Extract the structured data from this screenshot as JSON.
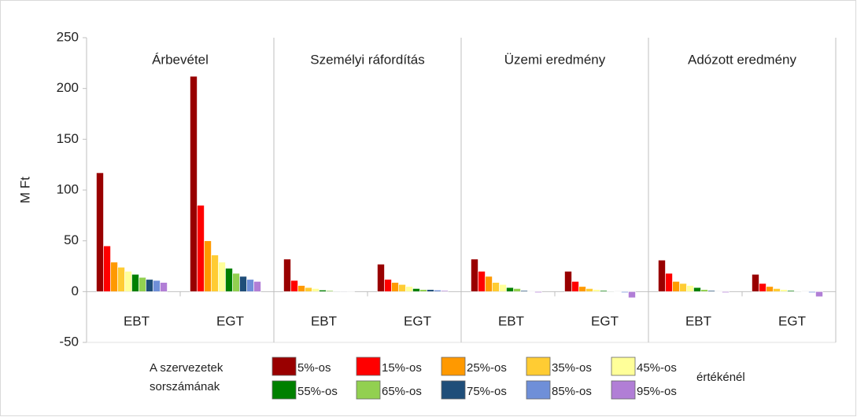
{
  "chart_data": {
    "type": "bar",
    "ylabel": "M Ft",
    "ylim": [
      -50,
      250
    ],
    "yticks": [
      -50,
      0,
      50,
      100,
      150,
      200,
      250
    ],
    "panel_titles": [
      "Árbevétel",
      "Személyi ráfordítás",
      "Üzemi eredmény",
      "Adózott eredmény"
    ],
    "categories": [
      "EBT",
      "EGT",
      "EBT",
      "EGT",
      "EBT",
      "EGT",
      "EBT",
      "EGT"
    ],
    "legend_prefix": [
      "A szervezetek",
      "sorszámának"
    ],
    "legend_suffix": "értékénél",
    "series": [
      {
        "name": "5%-os",
        "color": "#990000",
        "values": [
          117,
          212,
          32,
          27,
          32,
          20,
          31,
          17
        ]
      },
      {
        "name": "15%-os",
        "color": "#ff0000",
        "values": [
          45,
          85,
          11,
          12,
          20,
          10,
          18,
          8
        ]
      },
      {
        "name": "25%-os",
        "color": "#ff9900",
        "values": [
          29,
          50,
          6,
          9,
          15,
          5,
          10,
          5
        ]
      },
      {
        "name": "35%-os",
        "color": "#ffcc33",
        "values": [
          24,
          36,
          4,
          7,
          9,
          3,
          8,
          3
        ]
      },
      {
        "name": "45%-os",
        "color": "#ffff99",
        "values": [
          20,
          29,
          3,
          5,
          7,
          2,
          6,
          2
        ]
      },
      {
        "name": "55%-os",
        "color": "#008000",
        "values": [
          17,
          23,
          1.5,
          3,
          4,
          1,
          4,
          1
        ]
      },
      {
        "name": "65%-os",
        "color": "#92d050",
        "values": [
          14,
          18,
          1,
          2,
          3,
          0.5,
          2,
          0.5
        ]
      },
      {
        "name": "75%-os",
        "color": "#1f4e79",
        "values": [
          12,
          15,
          0.5,
          2,
          1,
          0,
          1,
          0
        ]
      },
      {
        "name": "85%-os",
        "color": "#6f8fd8",
        "values": [
          11,
          12,
          0.5,
          1.5,
          0,
          -1,
          0,
          -1
        ]
      },
      {
        "name": "95%-os",
        "color": "#b17ed6",
        "values": [
          9,
          10,
          0.3,
          1,
          -1,
          -6,
          -1,
          -5
        ]
      }
    ]
  }
}
